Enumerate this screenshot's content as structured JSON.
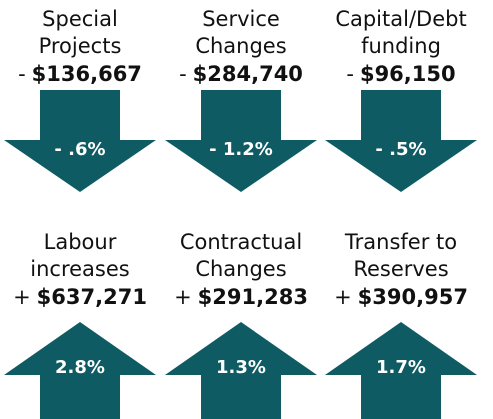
{
  "rows": [
    {
      "items": [
        {
          "title": [
            "Special",
            "Projects"
          ],
          "sign": "-",
          "amount": "$136,667",
          "percent": "- .6%"
        },
        {
          "title": [
            "Service",
            "Changes"
          ],
          "sign": "-",
          "amount": "$284,740",
          "percent": "- 1.2%"
        },
        {
          "title": [
            "Capital/Debt",
            "funding"
          ],
          "sign": "-",
          "amount": "$96,150",
          "percent": "- .5%"
        }
      ]
    },
    {
      "items": [
        {
          "title": [
            "Labour",
            "increases"
          ],
          "sign": "+",
          "amount": "$637,271",
          "percent": "2.8%"
        },
        {
          "title": [
            "Contractual",
            "Changes"
          ],
          "sign": "+",
          "amount": "$291,283",
          "percent": "1.3%"
        },
        {
          "title": [
            "Transfer to",
            "Reserves"
          ],
          "sign": "+",
          "amount": "$390,957",
          "percent": "1.7%"
        }
      ]
    }
  ]
}
